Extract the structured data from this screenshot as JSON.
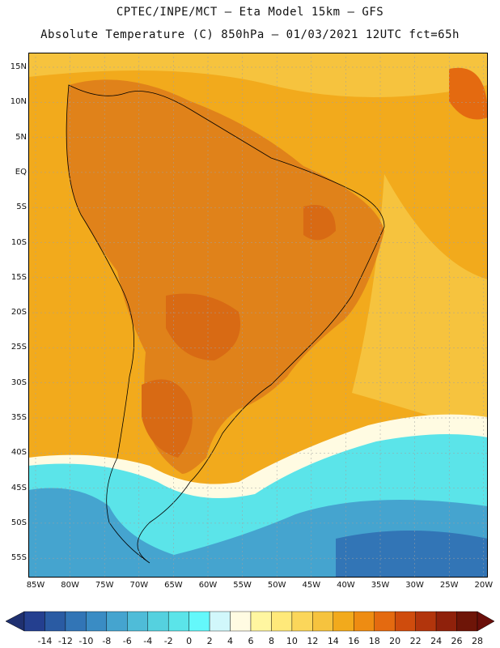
{
  "title_line1": "CPTEC/INPE/MCT –   Eta Model 15km – GFS",
  "title_line2": "Absolute Temperature (C) 850hPa – 01/03/2021 12UTC fct=65h",
  "lat_labels": [
    "15N",
    "10N",
    "5N",
    "EQ",
    "5S",
    "10S",
    "15S",
    "20S",
    "25S",
    "30S",
    "35S",
    "40S",
    "45S",
    "50S",
    "55S"
  ],
  "lon_labels": [
    "85W",
    "80W",
    "75W",
    "70W",
    "65W",
    "60W",
    "55W",
    "50W",
    "45W",
    "40W",
    "35W",
    "30W",
    "25W",
    "20W"
  ],
  "colorbar": {
    "labels": [
      "-14",
      "-12",
      "-10",
      "-8",
      "-6",
      "-4",
      "-2",
      "0",
      "2",
      "4",
      "6",
      "8",
      "10",
      "12",
      "14",
      "16",
      "18",
      "20",
      "22",
      "24",
      "26",
      "28"
    ],
    "colors": [
      "#243f8f",
      "#2a5ba3",
      "#3275b6",
      "#3a8cc4",
      "#45a4cf",
      "#4fbcd8",
      "#55d1df",
      "#5be4e9",
      "#64f8fb",
      "#d1f7fb",
      "#fffbe2",
      "#fff6a0",
      "#ffe97a",
      "#fbd65a",
      "#f6c33e",
      "#f2aa1c",
      "#ee8c12",
      "#e46a10",
      "#cf4c0d",
      "#b2350c",
      "#8f210b",
      "#6e1508"
    ],
    "arrow_low": "#1f3070",
    "arrow_high": "#6a0f0a"
  },
  "map_colors": {
    "ocean_warm": "#f2aa1c",
    "land_hot": "#e0821a",
    "land_hotter": "#d86a14",
    "cold_sea": "#5be4e9",
    "colder_sea": "#45a4cf",
    "coldest_sea": "#3275b6"
  }
}
